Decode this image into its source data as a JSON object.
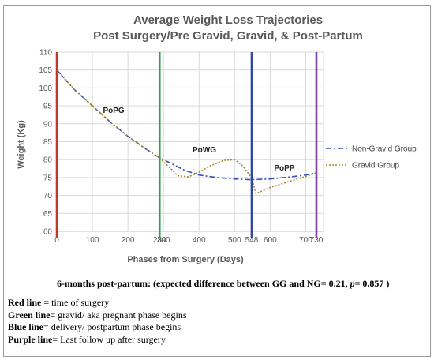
{
  "chart_data": {
    "type": "line",
    "title_line1": "Average Weight Loss Trajectories",
    "title_line2": "Post Surgery/Pre Gravid, Gravid, & Post-Partum",
    "xlabel": "Phases from Surgery (Days)",
    "ylabel": "Weight (Kg)",
    "xlim": [
      0,
      750
    ],
    "ylim": [
      60,
      110
    ],
    "x_ticks": [
      0,
      100,
      200,
      300,
      400,
      500,
      600,
      700
    ],
    "y_ticks": [
      60,
      65,
      70,
      75,
      80,
      85,
      90,
      95,
      100,
      105,
      110
    ],
    "grid": true,
    "legend_position": "right",
    "series": [
      {
        "name": "Non-Gravid Group",
        "color": "#3b4fb8",
        "style": "dash-dot",
        "x": [
          0,
          50,
          100,
          150,
          200,
          250,
          289,
          320,
          360,
          400,
          450,
          500,
          548,
          600,
          650,
          700,
          730
        ],
        "y": [
          105,
          99.5,
          95,
          90.5,
          86.5,
          83,
          80.5,
          79,
          77,
          75.7,
          75,
          74.6,
          74.4,
          74.6,
          75.1,
          75.7,
          76.3
        ]
      },
      {
        "name": "Gravid Group",
        "color": "#a08a2e",
        "style": "dotted",
        "x": [
          0,
          50,
          100,
          150,
          200,
          250,
          289,
          310,
          340,
          370,
          400,
          430,
          470,
          500,
          520,
          548,
          560,
          600,
          650,
          700,
          730
        ],
        "y": [
          105,
          99.5,
          95,
          90.5,
          86.5,
          83,
          80.5,
          78.5,
          75.5,
          75.2,
          76.5,
          78.2,
          79.8,
          80,
          78.5,
          75,
          70.5,
          72.2,
          73.8,
          75.3,
          76.3
        ]
      }
    ],
    "vertical_lines": [
      {
        "x": 0,
        "color": "#c0392b",
        "label": ""
      },
      {
        "x": 289,
        "color": "#2e9e4f",
        "label": "289"
      },
      {
        "x": 548,
        "color": "#2f45a8",
        "label": "548"
      },
      {
        "x": 730,
        "color": "#7b3fa0",
        "label": "730"
      }
    ],
    "phase_labels": [
      {
        "text": "PoPG",
        "x": 160,
        "y": 93
      },
      {
        "text": "PoWG",
        "x": 415,
        "y": 82
      },
      {
        "text": "PoPP",
        "x": 640,
        "y": 77
      }
    ]
  },
  "notes": {
    "stat_text": "6-months post-partum: (expected difference between GG and NG= 0.21, ",
    "stat_p": "p",
    "stat_end": "= 0.857 )",
    "key": [
      {
        "term": "Red line",
        "desc": " = time of surgery"
      },
      {
        "term": "Green line",
        "desc": "= gravid/ aka pregnant phase begins"
      },
      {
        "term": "Blue line",
        "desc": "= delivery/ postpartum phase begins"
      },
      {
        "term": "Purple line",
        "desc": "= Last follow up after surgery"
      }
    ]
  }
}
